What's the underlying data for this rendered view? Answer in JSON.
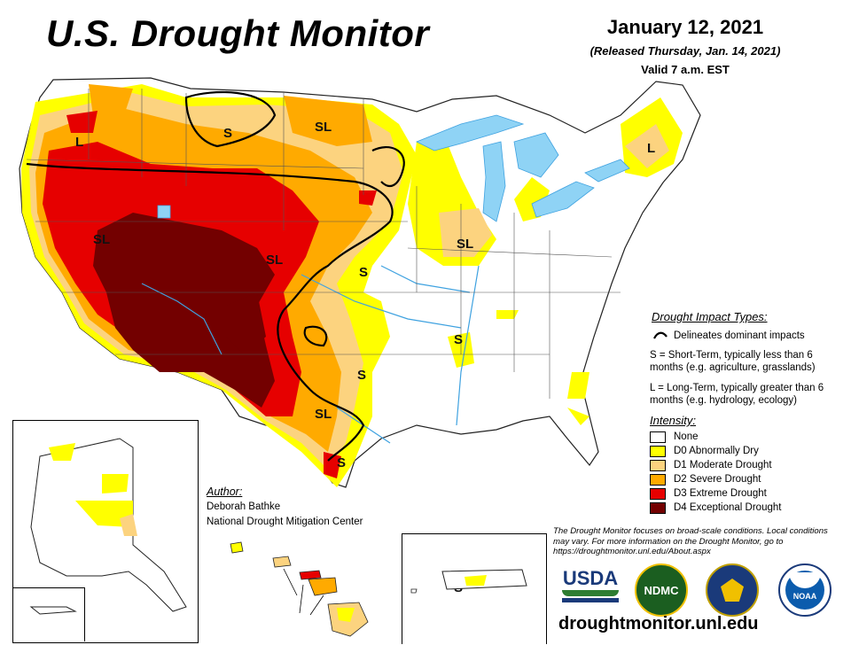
{
  "header": {
    "title": "U.S. Drought Monitor",
    "date": "January 12, 2021",
    "released": "(Released Thursday, Jan. 14, 2021)",
    "valid": "Valid 7 a.m. EST"
  },
  "impact_legend": {
    "title": "Drought Impact Types:",
    "line_label": "Delineates dominant impacts",
    "short_term": "S = Short-Term, typically less than 6 months (e.g. agriculture, grasslands)",
    "long_term": "L = Long-Term, typically greater than 6 months (e.g. hydrology, ecology)"
  },
  "intensity_legend": {
    "title": "Intensity:",
    "items": [
      {
        "label": "None",
        "color": "#ffffff"
      },
      {
        "label": "D0 Abnormally Dry",
        "color": "#ffff00"
      },
      {
        "label": "D1 Moderate Drought",
        "color": "#fcd37f"
      },
      {
        "label": "D2 Severe Drought",
        "color": "#ffaa00"
      },
      {
        "label": "D3 Extreme Drought",
        "color": "#e60000"
      },
      {
        "label": "D4 Exceptional Drought",
        "color": "#730000"
      }
    ]
  },
  "author": {
    "title": "Author:",
    "name": "Deborah Bathke",
    "org": "National Drought Mitigation Center"
  },
  "note": "The Drought Monitor focuses on broad-scale conditions. Local conditions may vary. For more information on the Drought Monitor, go to https://droughtmonitor.unl.edu/About.aspx",
  "website": "droughtmonitor.unl.edu",
  "map_labels": {
    "s": "S",
    "l": "L",
    "sl": "SL"
  },
  "logos": {
    "usda": "USDA",
    "ndmc": "NDMC",
    "noaa": "NOAA"
  },
  "colors": {
    "water": "#8fd3f5",
    "river": "#3fa2e0",
    "boundary": "#000000"
  }
}
